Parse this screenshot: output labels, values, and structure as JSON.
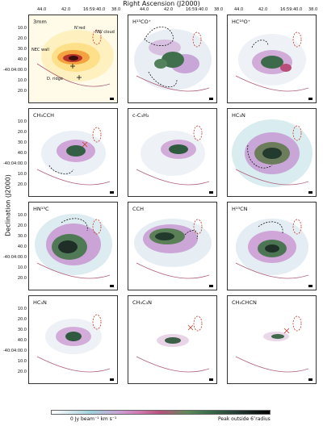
{
  "figure": {
    "top_axis_label": "Right Ascension (J2000)",
    "left_axis_label": "Declination (J2000)",
    "ra_ticks": [
      "44.0",
      "42.0",
      "16:59:40.0",
      "38.0"
    ],
    "dec_ticks": [
      "10.0",
      "20.0",
      "30.0",
      "40.0",
      "-40:04:00.0",
      "10.0",
      "20.0"
    ],
    "panels": [
      {
        "label": "3mm",
        "annotations": [
          "NW cloud",
          "N’red",
          "NEC wall",
          "D. ridge"
        ]
      },
      {
        "label": "H¹³CO⁺"
      },
      {
        "label": "HC¹⁸O⁺"
      },
      {
        "label": "CH₃CCH"
      },
      {
        "label": "c-C₃H₂"
      },
      {
        "label": "HC₃N"
      },
      {
        "label": "HN¹³C"
      },
      {
        "label": "CCH"
      },
      {
        "label": "H¹³CN"
      },
      {
        "label": "HC₃N"
      },
      {
        "label": "CH₃C₃N"
      },
      {
        "label": "CH₃CHCN"
      }
    ],
    "colorbar": {
      "left_label": "0 Jy beam⁻¹ km s⁻¹",
      "right_label": "Peak outside 6″radius"
    }
  }
}
